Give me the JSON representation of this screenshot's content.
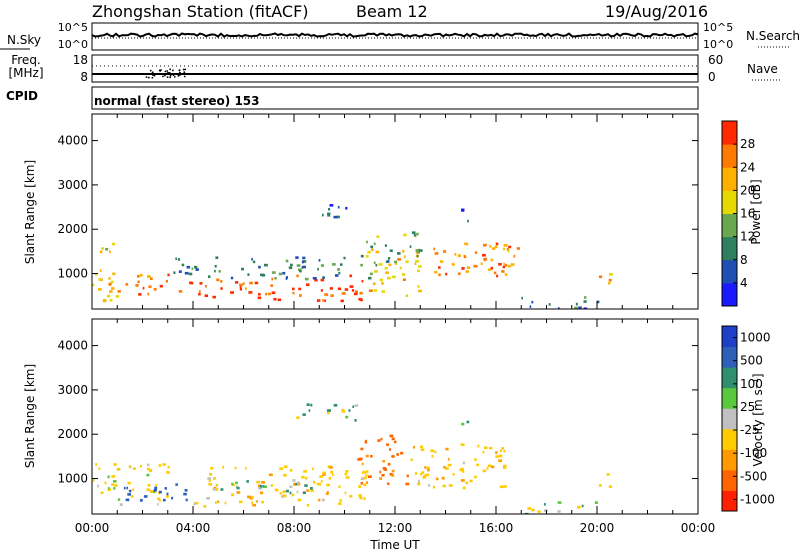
{
  "header": {
    "station": "Zhongshan Station (fitACF)",
    "beam": "Beam 12",
    "date": "19/Aug/2016"
  },
  "top_panels": {
    "nsky": {
      "left_label": "N.Sky",
      "left_ticks": [
        "10^5",
        "10^0"
      ],
      "right_label": "N.Search",
      "right_ticks": [
        "10^5",
        "10^0"
      ]
    },
    "freq": {
      "left_label_1": "Freq.",
      "left_label_2": "[MHz]",
      "left_ticks": [
        "18",
        "8"
      ],
      "right_label": "Nave",
      "right_ticks": [
        "60",
        "0"
      ]
    },
    "cpid": {
      "label": "CPID",
      "text": "normal (fast stereo) 153"
    }
  },
  "chart_data": [
    {
      "type": "heatmap",
      "name": "power",
      "ylabel": "Slant Range [km]",
      "xlabel": "",
      "ylim": [
        200,
        4600
      ],
      "yticks": [
        1000,
        2000,
        3000,
        4000
      ],
      "xlim": [
        0,
        24
      ],
      "xtick_labels": [],
      "colorbar": {
        "label": "Power [dB]",
        "ticks": [
          4,
          8,
          12,
          16,
          20,
          24,
          28
        ],
        "range": [
          0,
          32
        ],
        "colors": [
          "#1a1aff",
          "#1f4fb4",
          "#2f7f5f",
          "#6aa84f",
          "#e6d800",
          "#ffb000",
          "#ff7a00",
          "#ff2a00"
        ]
      },
      "regions": [
        {
          "t0": 0.0,
          "t1": 1.0,
          "r0": 400,
          "r1": 1700,
          "v": 20
        },
        {
          "t0": 1.0,
          "t1": 3.5,
          "r0": 500,
          "r1": 1000,
          "v": 26
        },
        {
          "t0": 3.5,
          "t1": 6.5,
          "r0": 480,
          "r1": 900,
          "v": 28
        },
        {
          "t0": 6.5,
          "t1": 11.0,
          "r0": 400,
          "r1": 1000,
          "v": 30
        },
        {
          "t0": 11.0,
          "t1": 13.0,
          "r0": 500,
          "r1": 1600,
          "v": 20
        },
        {
          "t0": 3.0,
          "t1": 12.0,
          "r0": 900,
          "r1": 1400,
          "v": 10
        },
        {
          "t0": 8.0,
          "t1": 10.5,
          "r0": 2300,
          "r1": 2600,
          "v": 6
        },
        {
          "t0": 10.5,
          "t1": 13.0,
          "r0": 1400,
          "r1": 2000,
          "v": 14
        },
        {
          "t0": 13.5,
          "t1": 16.5,
          "r0": 900,
          "r1": 1800,
          "v": 26
        },
        {
          "t0": 14.5,
          "t1": 15.5,
          "r0": 2200,
          "r1": 2500,
          "v": 6
        },
        {
          "t0": 16.0,
          "t1": 17.0,
          "r0": 1100,
          "r1": 1600,
          "v": 24
        },
        {
          "t0": 17.0,
          "t1": 20.0,
          "r0": 200,
          "r1": 500,
          "v": 8
        },
        {
          "t0": 20.0,
          "t1": 20.5,
          "r0": 800,
          "r1": 1200,
          "v": 22
        }
      ]
    },
    {
      "type": "heatmap",
      "name": "velocity",
      "ylabel": "Slant Range [km]",
      "xlabel": "Time UT",
      "ylim": [
        200,
        4600
      ],
      "yticks": [
        1000,
        2000,
        3000,
        4000
      ],
      "xlim": [
        0,
        24
      ],
      "xtick_labels": [
        "00:00",
        "04:00",
        "08:00",
        "12:00",
        "16:00",
        "20:00",
        "00:00"
      ],
      "colorbar": {
        "label": "Velocity [m s⁻¹]",
        "ticks": [
          1000,
          500,
          100,
          25,
          -25,
          -100,
          -500,
          -1000
        ],
        "colors": [
          "#1e40c8",
          "#2f5fb8",
          "#2f8f6f",
          "#5ac83c",
          "#c0c0c0",
          "#ffcc00",
          "#ff9a00",
          "#ff6400",
          "#ff2000"
        ]
      },
      "regions": [
        {
          "t0": 0.0,
          "t1": 3.0,
          "r0": 400,
          "r1": 1400,
          "v": -100
        },
        {
          "t0": 1.0,
          "t1": 4.0,
          "r0": 500,
          "r1": 900,
          "v": 500
        },
        {
          "t0": 4.0,
          "t1": 11.0,
          "r0": 400,
          "r1": 1300,
          "v": -200
        },
        {
          "t0": 5.0,
          "t1": 9.0,
          "r0": 700,
          "r1": 1000,
          "v": 100
        },
        {
          "t0": 8.0,
          "t1": 10.5,
          "r0": 2300,
          "r1": 2700,
          "v": 0
        },
        {
          "t0": 10.5,
          "t1": 12.5,
          "r0": 900,
          "r1": 2000,
          "v": -800
        },
        {
          "t0": 12.5,
          "t1": 16.5,
          "r0": 800,
          "r1": 1800,
          "v": -200
        },
        {
          "t0": 14.5,
          "t1": 15.5,
          "r0": 2200,
          "r1": 2400,
          "v": 0
        },
        {
          "t0": 17.0,
          "t1": 20.0,
          "r0": 200,
          "r1": 500,
          "v": 0
        },
        {
          "t0": 20.0,
          "t1": 20.5,
          "r0": 800,
          "r1": 1200,
          "v": -150
        }
      ]
    }
  ]
}
